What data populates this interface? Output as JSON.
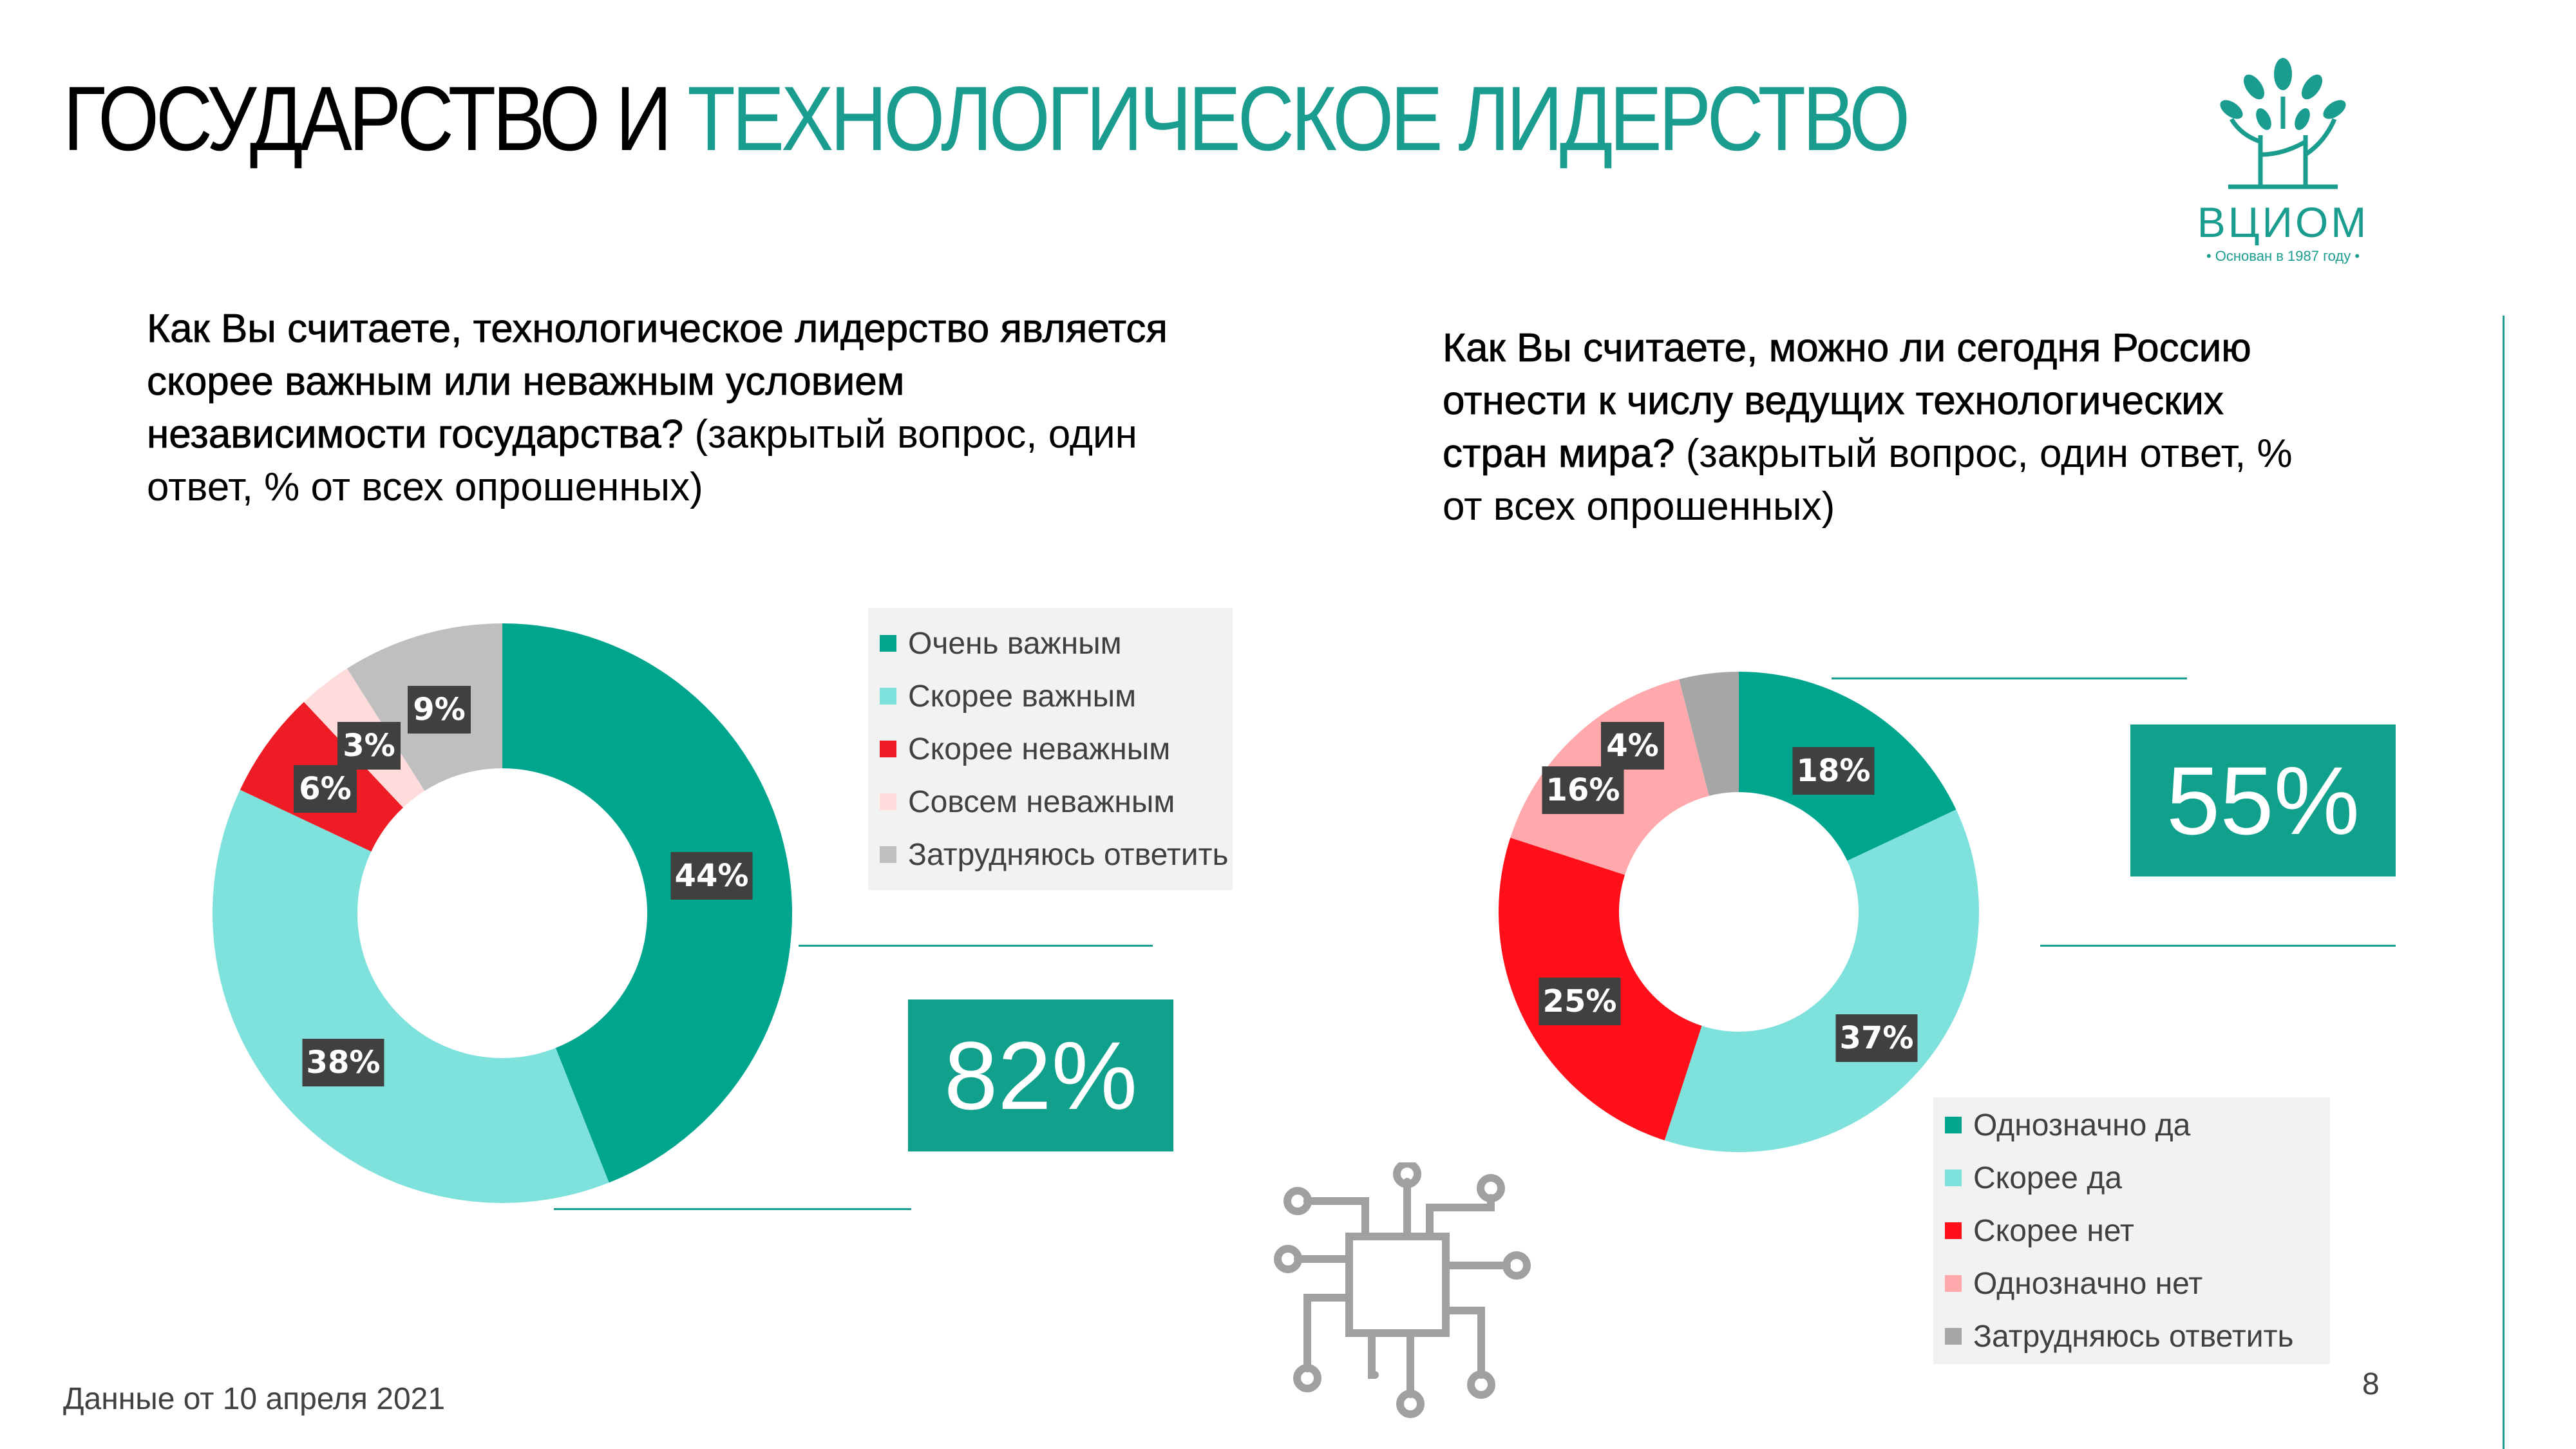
{
  "header": {
    "title_part1": "ГОСУДАРСТВО И ",
    "title_part2": "ТЕХНОЛОГИЧЕСКОЕ ЛИДЕРСТВО",
    "logo_text": "ВЦИОМ",
    "logo_tagline": "• Основан в 1987 году •"
  },
  "left": {
    "question_bold": "Как Вы считаете, технологическое лидерство является скорее важным или неважным условием независимости государства?",
    "question_note": " (закрытый вопрос, один ответ, % от всех опрошенных)",
    "highlight": "82%"
  },
  "right": {
    "question_bold": "Как Вы считаете, можно ли сегодня Россию отнести к числу ведущих технологических стран мира?",
    "question_note": " (закрытый вопрос, один ответ, % от всех опрошенных)",
    "highlight": "55%"
  },
  "chart_data": [
    {
      "type": "pie",
      "variant": "donut",
      "categories": [
        "Очень важным",
        "Скорее важным",
        "Скорее неважным",
        "Совсем неважным",
        "Затрудняюсь ответить"
      ],
      "values": [
        44,
        38,
        6,
        3,
        9
      ],
      "labels": [
        "44%",
        "38%",
        "6%",
        "3%",
        "9%"
      ],
      "colors": [
        "#00a58e",
        "#7fe1dc",
        "#ee1c24",
        "#ffdcdc",
        "#bfbfbf"
      ],
      "legend": "right"
    },
    {
      "type": "pie",
      "variant": "donut",
      "categories": [
        "Однозначно да",
        "Скорее да",
        "Скорее нет",
        "Однозначно нет",
        "Затрудняюсь ответить"
      ],
      "values": [
        18,
        37,
        25,
        16,
        4
      ],
      "labels": [
        "18%",
        "37%",
        "25%",
        "16%",
        "4%"
      ],
      "colors": [
        "#00a58e",
        "#7fe1dc",
        "#ff0f1a",
        "#ffa9ad",
        "#a6a6a6"
      ],
      "legend": "bottom-right"
    }
  ],
  "footer": {
    "date": "Данные от 10 апреля 2021",
    "page": "8"
  },
  "colors": {
    "accent": "#1a9c8f",
    "box": "#11a08b",
    "label_bg": "#404040"
  },
  "icons": [
    "vciom-tree-logo",
    "circuit-chip-icon"
  ]
}
